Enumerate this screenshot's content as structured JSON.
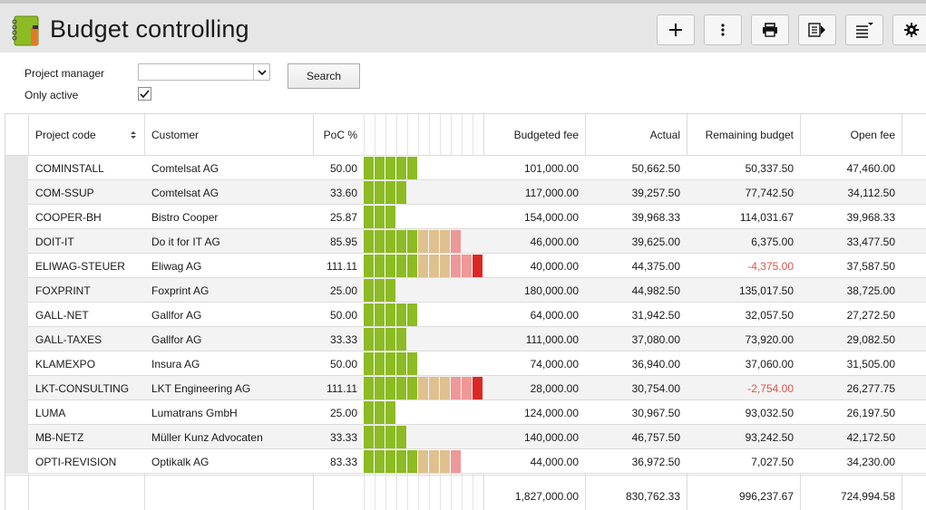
{
  "app": {
    "title": "Budget controlling"
  },
  "toolbar": {
    "buttons": [
      {
        "name": "add-button",
        "icon": "plus-icon"
      },
      {
        "name": "more-options-button",
        "icon": "vertical-ellipsis-icon"
      },
      {
        "name": "print-button",
        "icon": "printer-icon"
      },
      {
        "name": "export-button",
        "icon": "export-icon"
      },
      {
        "name": "column-chooser-button",
        "icon": "list-options-icon"
      },
      {
        "name": "settings-button",
        "icon": "gear-icon"
      }
    ]
  },
  "filter": {
    "project_manager_label": "Project manager",
    "project_manager_value": "",
    "only_active_label": "Only active",
    "only_active_checked": true,
    "search_label": "Search"
  },
  "table": {
    "headers": {
      "project_code": "Project code",
      "customer": "Customer",
      "poc": "PoC %",
      "budgeted_fee": "Budgeted fee",
      "actual": "Actual",
      "remaining_budget": "Remaining budget",
      "open_fee": "Open fee"
    },
    "rows": [
      {
        "code": "COMINSTALL",
        "customer": "Comtelsat AG",
        "poc": "50.00",
        "budgeted": "101,000.00",
        "actual": "50,662.50",
        "remaining": "50,337.50",
        "open": "47,460.00",
        "poc_value": 50.0,
        "negative": false
      },
      {
        "code": "COM-SSUP",
        "customer": "Comtelsat AG",
        "poc": "33.60",
        "budgeted": "117,000.00",
        "actual": "39,257.50",
        "remaining": "77,742.50",
        "open": "34,112.50",
        "poc_value": 33.6,
        "negative": false
      },
      {
        "code": "COOPER-BH",
        "customer": "Bistro Cooper",
        "poc": "25.87",
        "budgeted": "154,000.00",
        "actual": "39,968.33",
        "remaining": "114,031.67",
        "open": "39,968.33",
        "poc_value": 25.87,
        "negative": false
      },
      {
        "code": "DOIT-IT",
        "customer": "Do it for IT AG",
        "poc": "85.95",
        "budgeted": "46,000.00",
        "actual": "39,625.00",
        "remaining": "6,375.00",
        "open": "33,477.50",
        "poc_value": 85.95,
        "negative": false
      },
      {
        "code": "ELIWAG-STEUER",
        "customer": "Eliwag AG",
        "poc": "111.11",
        "budgeted": "40,000.00",
        "actual": "44,375.00",
        "remaining": "-4,375.00",
        "open": "37,587.50",
        "poc_value": 111.11,
        "negative": true
      },
      {
        "code": "FOXPRINT",
        "customer": "Foxprint AG",
        "poc": "25.00",
        "budgeted": "180,000.00",
        "actual": "44,982.50",
        "remaining": "135,017.50",
        "open": "38,725.00",
        "poc_value": 25.0,
        "negative": false
      },
      {
        "code": "GALL-NET",
        "customer": "Gallfor AG",
        "poc": "50.00",
        "budgeted": "64,000.00",
        "actual": "31,942.50",
        "remaining": "32,057.50",
        "open": "27,272.50",
        "poc_value": 50.0,
        "negative": false
      },
      {
        "code": "GALL-TAXES",
        "customer": "Gallfor AG",
        "poc": "33.33",
        "budgeted": "111,000.00",
        "actual": "37,080.00",
        "remaining": "73,920.00",
        "open": "29,082.50",
        "poc_value": 33.33,
        "negative": false
      },
      {
        "code": "KLAMEXPO",
        "customer": "Insura AG",
        "poc": "50.00",
        "budgeted": "74,000.00",
        "actual": "36,940.00",
        "remaining": "37,060.00",
        "open": "31,505.00",
        "poc_value": 50.0,
        "negative": false
      },
      {
        "code": "LKT-CONSULTING",
        "customer": "LKT Engineering AG",
        "poc": "111.11",
        "budgeted": "28,000.00",
        "actual": "30,754.00",
        "remaining": "-2,754.00",
        "open": "26,277.75",
        "poc_value": 111.11,
        "negative": true
      },
      {
        "code": "LUMA",
        "customer": "Lumatrans GmbH",
        "poc": "25.00",
        "budgeted": "124,000.00",
        "actual": "30,967.50",
        "remaining": "93,032.50",
        "open": "26,197.50",
        "poc_value": 25.0,
        "negative": false
      },
      {
        "code": "MB-NETZ",
        "customer": "Müller Kunz Advocaten",
        "poc": "33.33",
        "budgeted": "140,000.00",
        "actual": "46,757.50",
        "remaining": "93,242.50",
        "open": "42,172.50",
        "poc_value": 33.33,
        "negative": false
      },
      {
        "code": "OPTI-REVISION",
        "customer": "Optikalk AG",
        "poc": "83.33",
        "budgeted": "44,000.00",
        "actual": "36,972.50",
        "remaining": "7,027.50",
        "open": "34,230.00",
        "poc_value": 83.33,
        "negative": false
      }
    ],
    "totals": {
      "budgeted": "1,827,000.00",
      "actual": "830,762.33",
      "remaining": "996,237.67",
      "open": "724,994.58"
    }
  },
  "colors": {
    "poc_green": "#8cbb23",
    "poc_tan": "#dfc08f",
    "poc_pink": "#ee9898",
    "poc_red": "#dc2727",
    "negative_text": "#e0524a"
  }
}
